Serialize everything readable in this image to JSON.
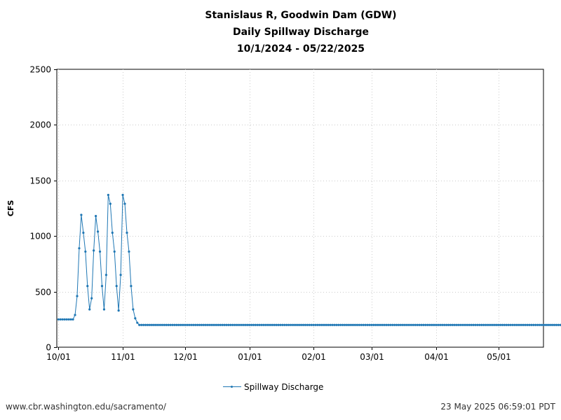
{
  "title_lines": [
    "Stanislaus R, Goodwin Dam (GDW)",
    "Daily Spillway Discharge",
    "10/1/2024 - 05/22/2025"
  ],
  "footer": {
    "left": "www.cbr.washington.edu/sacramento/",
    "right": "23 May 2025 06:59:01 PDT"
  },
  "chart_data": {
    "type": "line",
    "title": "Stanislaus R, Goodwin Dam (GDW) Daily Spillway Discharge 10/1/2024 - 05/22/2025",
    "xlabel": "",
    "ylabel": "CFS",
    "ylim": [
      0,
      2500
    ],
    "yticks": [
      0,
      500,
      1000,
      1500,
      2000,
      2500
    ],
    "xlim": [
      "2024-10-01",
      "2025-05-22"
    ],
    "xticks": [
      {
        "date": "2024-10-01",
        "label": "10/01"
      },
      {
        "date": "2024-11-01",
        "label": "11/01"
      },
      {
        "date": "2024-12-01",
        "label": "12/01"
      },
      {
        "date": "2025-01-01",
        "label": "01/01"
      },
      {
        "date": "2025-02-01",
        "label": "02/01"
      },
      {
        "date": "2025-03-01",
        "label": "03/01"
      },
      {
        "date": "2025-04-01",
        "label": "04/01"
      },
      {
        "date": "2025-05-01",
        "label": "05/01"
      }
    ],
    "grid": true,
    "legend_position": "bottom-center",
    "series": [
      {
        "name": "Spillway Discharge",
        "color": "#1f77b4",
        "start_date": "2024-10-01",
        "values": [
          250,
          250,
          250,
          250,
          250,
          250,
          250,
          250,
          290,
          460,
          890,
          1190,
          1030,
          860,
          550,
          340,
          440,
          870,
          1180,
          1040,
          860,
          550,
          340,
          650,
          1370,
          1290,
          1030,
          860,
          550,
          330,
          650,
          1370,
          1290,
          1030,
          860,
          550,
          340,
          260,
          220,
          200,
          200,
          200,
          200,
          200,
          200,
          200,
          200,
          200,
          200,
          200,
          200,
          200,
          200,
          200,
          200,
          200,
          200,
          200,
          200,
          200,
          200,
          200,
          200,
          200,
          200,
          200,
          200,
          200,
          200,
          200,
          200,
          200,
          200,
          200,
          200,
          200,
          200,
          200,
          200,
          200,
          200,
          200,
          200,
          200,
          200,
          200,
          200,
          200,
          200,
          200,
          200,
          200,
          200,
          200,
          200,
          200,
          200,
          200,
          200,
          200,
          200,
          200,
          200,
          200,
          200,
          200,
          200,
          200,
          200,
          200,
          200,
          200,
          200,
          200,
          200,
          200,
          200,
          200,
          200,
          200,
          200,
          200,
          200,
          200,
          200,
          200,
          200,
          200,
          200,
          200,
          200,
          200,
          200,
          200,
          200,
          200,
          200,
          200,
          200,
          200,
          200,
          200,
          200,
          200,
          200,
          200,
          200,
          200,
          200,
          200,
          200,
          200,
          200,
          200,
          200,
          200,
          200,
          200,
          200,
          200,
          200,
          200,
          200,
          200,
          200,
          200,
          200,
          200,
          200,
          200,
          200,
          200,
          200,
          200,
          200,
          200,
          200,
          200,
          200,
          200,
          200,
          200,
          200,
          200,
          200,
          200,
          200,
          200,
          200,
          200,
          200,
          200,
          200,
          200,
          200,
          200,
          200,
          200,
          200,
          200,
          200,
          200,
          200,
          200,
          200,
          200,
          200,
          200,
          200,
          200,
          200,
          200,
          200,
          200,
          200,
          200,
          200,
          200,
          200,
          200,
          200,
          200,
          200,
          200,
          200,
          200,
          200,
          200,
          200,
          200,
          200,
          200,
          200,
          200,
          200,
          200,
          200,
          200,
          200,
          200,
          200,
          200,
          200,
          200,
          200,
          200,
          200,
          200,
          200,
          200,
          200,
          200,
          200,
          200,
          200,
          200,
          200,
          200,
          200,
          200,
          200,
          200,
          200,
          200,
          200,
          200,
          200,
          200,
          200,
          200,
          200,
          200,
          200,
          200,
          200,
          200,
          200,
          200,
          200,
          200,
          200,
          200,
          200,
          200,
          200,
          200,
          200,
          200,
          200,
          200,
          200,
          200,
          200,
          200,
          200,
          200,
          200,
          200,
          200,
          200,
          200,
          200,
          200,
          200,
          200,
          200,
          200,
          200,
          200,
          200,
          200,
          200,
          200,
          200,
          200,
          200,
          200,
          200,
          200,
          200,
          200,
          200,
          200,
          200,
          200,
          200,
          200,
          200,
          200,
          200,
          200,
          200,
          200,
          200,
          200,
          200,
          200,
          200,
          200,
          200,
          200,
          200,
          200,
          200,
          200,
          200,
          200,
          200,
          200,
          200,
          200,
          200,
          200,
          200,
          200,
          200,
          200,
          200,
          200,
          200,
          200,
          200,
          200,
          200,
          200,
          200,
          200,
          200,
          200,
          200,
          200,
          200,
          200,
          200,
          200,
          200,
          200
        ]
      }
    ]
  }
}
